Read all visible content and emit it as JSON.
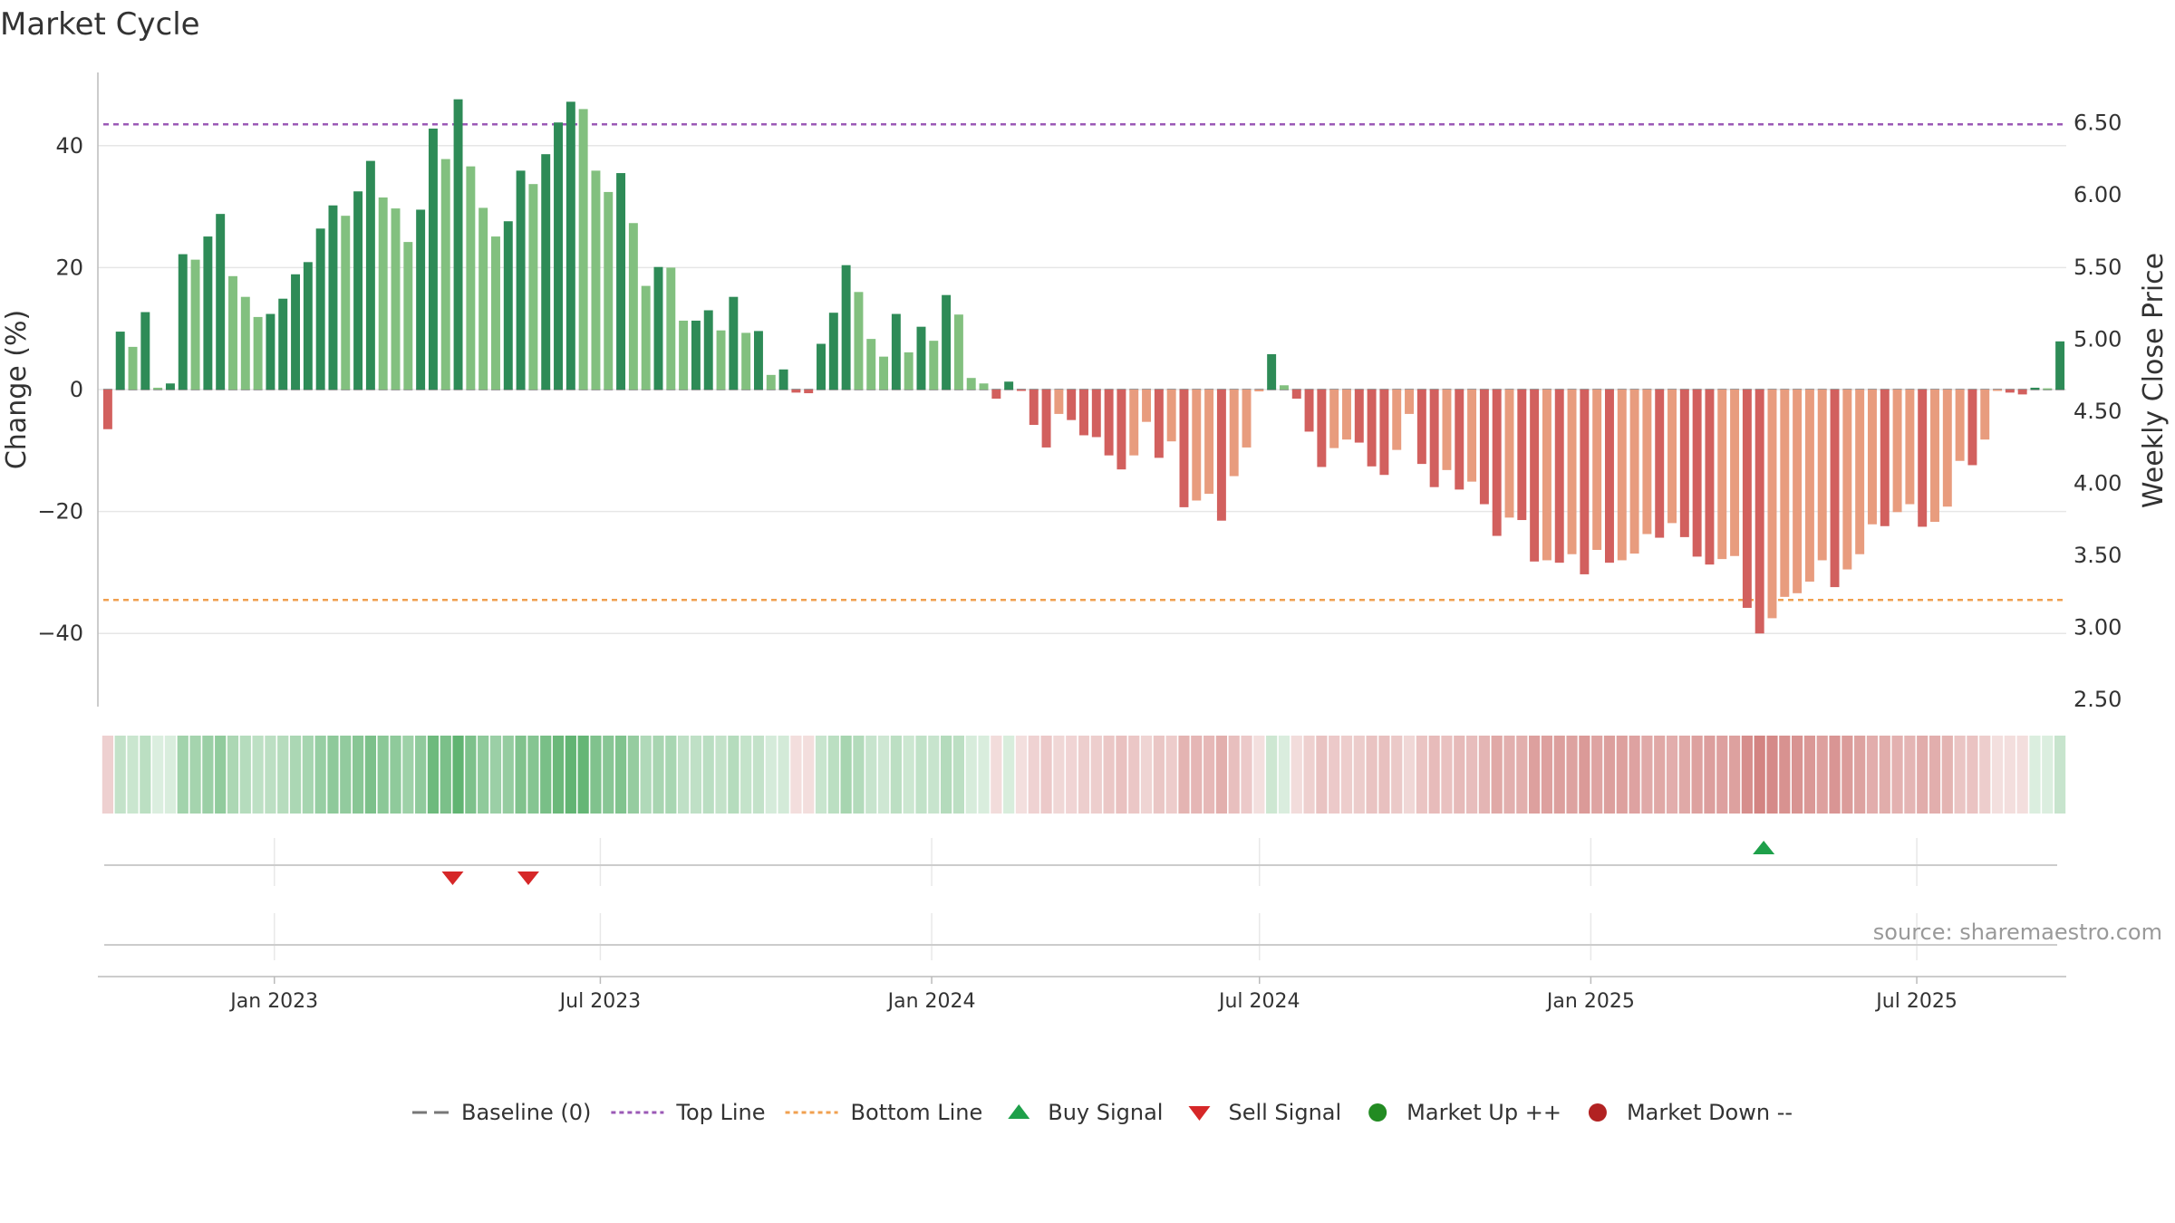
{
  "chart_data": {
    "type": "bar",
    "title": "Market Cycle",
    "ylabel": "Change (%)",
    "y2label": "Weekly Close Price",
    "ylim": [
      -52,
      52
    ],
    "y2lim": [
      2.45,
      6.85
    ],
    "yticks": [
      -40,
      -20,
      0,
      20,
      40
    ],
    "yticklabels": [
      "−40",
      "−20",
      "0",
      "20",
      "40"
    ],
    "y2ticks": [
      "2.50",
      "3.00",
      "3.50",
      "4.00",
      "4.50",
      "5.00",
      "5.50",
      "6.00",
      "6.50"
    ],
    "xlim": [
      "2022-09-25",
      "2025-09-22"
    ],
    "xticks": [
      {
        "date": "2023-01-01",
        "label": "Jan 2023"
      },
      {
        "date": "2023-07-01",
        "label": "Jul 2023"
      },
      {
        "date": "2024-01-01",
        "label": "Jan 2024"
      },
      {
        "date": "2024-07-01",
        "label": "Jul 2024"
      },
      {
        "date": "2025-01-01",
        "label": "Jan 2025"
      },
      {
        "date": "2025-07-01",
        "label": "Jul 2025"
      }
    ],
    "first_week": "2022-09-26",
    "top_line": 43.5,
    "bottom_line": -34.5,
    "colors": {
      "up_dark": "#2e8b57",
      "up_light": "#82c07f",
      "down_dark": "#d2605e",
      "down_light": "#e89c7e",
      "top_line": "#9b59b6",
      "bottom_line": "#f0a050",
      "buy": "#1ea04a",
      "sell": "#d62728",
      "market_up": "#228b22",
      "market_down": "#b22222",
      "baseline": "#777777"
    },
    "values": [
      -6.5,
      9.5,
      7,
      12.7,
      0.3,
      1,
      22.2,
      21.3,
      25.1,
      28.8,
      18.6,
      15.2,
      11.9,
      12.4,
      14.9,
      18.9,
      20.9,
      26.4,
      30.2,
      28.5,
      32.5,
      37.5,
      31.5,
      29.7,
      24.2,
      29.5,
      42.8,
      37.8,
      47.6,
      36.6,
      29.8,
      25.1,
      27.6,
      35.9,
      33.7,
      38.6,
      43.8,
      47.2,
      46,
      35.9,
      32.4,
      35.5,
      27.3,
      17,
      20.1,
      20,
      11.3,
      11.3,
      13,
      9.7,
      15.2,
      9.3,
      9.6,
      2.4,
      3.3,
      -0.5,
      -0.6,
      7.5,
      12.6,
      20.4,
      16,
      8.3,
      5.4,
      12.4,
      6.1,
      10.3,
      8,
      15.5,
      12.3,
      1.9,
      1,
      -1.5,
      1.3,
      -0.2,
      -5.8,
      -9.5,
      -4,
      -5,
      -7.5,
      -7.8,
      -10.8,
      -13.1,
      -10.8,
      -5.3,
      -11.2,
      -8.5,
      -19.3,
      -18.2,
      -17.1,
      -21.5,
      -14.2,
      -9.5,
      -0.3,
      5.8,
      0.7,
      -1.5,
      -6.9,
      -12.7,
      -9.6,
      -8.2,
      -8.7,
      -12.6,
      -14,
      -9.9,
      -4,
      -12.2,
      -16,
      -13.2,
      -16.4,
      -15.1,
      -18.8,
      -24,
      -21,
      -21.4,
      -28.2,
      -28,
      -28.4,
      -27,
      -30.3,
      -26.3,
      -28.4,
      -28,
      -26.9,
      -23.7,
      -24.3,
      -21.9,
      -24.2,
      -27.4,
      -28.7,
      -27.8,
      -27.3,
      -35.8,
      -40,
      -37.5,
      -34,
      -33.4,
      -31.5,
      -28,
      -32.4,
      -29.5,
      -27,
      -22.1,
      -22.4,
      -20.1,
      -18.8,
      -22.5,
      -21.7,
      -19.2,
      -11.7,
      -12.4,
      -8.2,
      -0.2,
      -0.5,
      -0.8,
      0.3,
      0.2,
      7.9
    ],
    "signals": [
      {
        "type": "sell",
        "date": "2023-04-10"
      },
      {
        "type": "sell",
        "date": "2023-05-22"
      },
      {
        "type": "buy",
        "date": "2025-04-07"
      }
    ],
    "legend": [
      {
        "label": "Baseline (0)",
        "symbol": "dash"
      },
      {
        "label": "Top Line",
        "symbol": "dotted-top"
      },
      {
        "label": "Bottom Line",
        "symbol": "dotted-bottom"
      },
      {
        "label": "Buy Signal",
        "symbol": "triangle-up"
      },
      {
        "label": "Sell Signal",
        "symbol": "triangle-down"
      },
      {
        "label": "Market Up ++",
        "symbol": "circle-up"
      },
      {
        "label": "Market Down --",
        "symbol": "circle-down"
      }
    ],
    "legend_position": "bottom-center",
    "grid": true,
    "source": "source: sharemaestro.com"
  }
}
